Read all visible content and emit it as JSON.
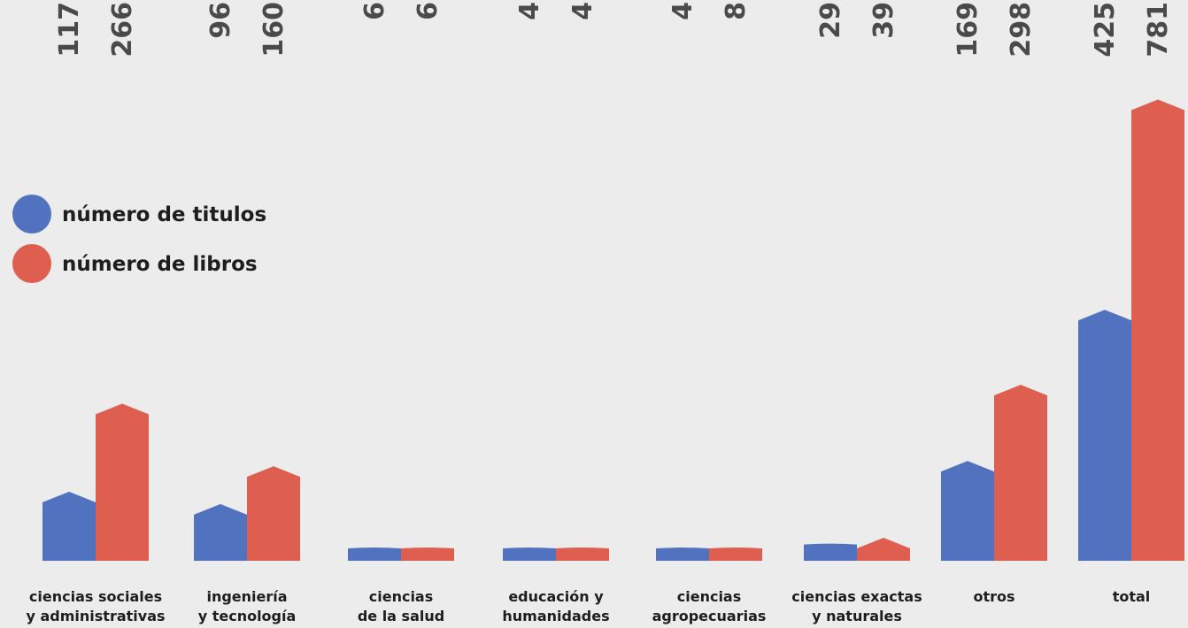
{
  "chart_data": {
    "type": "bar",
    "categories": [
      [
        "ciencias sociales",
        "y administrativas"
      ],
      [
        "ingeniería",
        "y tecnología"
      ],
      [
        "ciencias",
        "de la salud"
      ],
      [
        "educación y",
        "humanidades"
      ],
      [
        "ciencias",
        "agropecuarias"
      ],
      [
        "ciencias exactas",
        "y naturales"
      ],
      [
        "otros"
      ],
      [
        "total"
      ]
    ],
    "series": [
      {
        "name": "número de titulos",
        "color": "#5173bf",
        "values": [
          117,
          96,
          6,
          4,
          4,
          29,
          169,
          425
        ]
      },
      {
        "name": "número de libros",
        "color": "#de5f50",
        "values": [
          266,
          160,
          6,
          4,
          8,
          39,
          298,
          781
        ]
      }
    ],
    "title": "",
    "xlabel": "",
    "ylabel": "",
    "legend_position": "left",
    "grid": false
  }
}
